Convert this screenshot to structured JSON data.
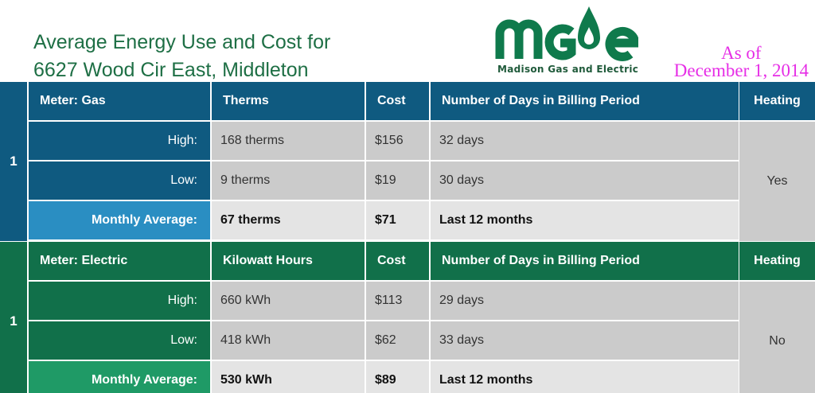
{
  "title": {
    "line1": "Average Energy Use and Cost for",
    "line2": "6627 Wood Cir East, Middleton"
  },
  "logo": {
    "wordmark": "MGE",
    "subtitle": "Madison Gas and Electric",
    "icon": "flame-drop-icon",
    "color": "#0f7a4c"
  },
  "as_of": {
    "line1": "As of",
    "line2": "December 1, 2014",
    "color": "#e62ee6"
  },
  "gas": {
    "number": "1",
    "header": {
      "meter": "Meter: Gas",
      "unit": "Therms",
      "cost": "Cost",
      "days": "Number of Days in Billing Period",
      "heating": "Heating"
    },
    "high": {
      "label": "High:",
      "usage": "168 therms",
      "cost": "$156",
      "days": "32 days"
    },
    "low": {
      "label": "Low:",
      "usage": "9 therms",
      "cost": "$19",
      "days": "30 days"
    },
    "average": {
      "label": "Monthly Average:",
      "usage": "67 therms",
      "cost": "$71",
      "days": "Last 12 months"
    },
    "heating": "Yes",
    "colors": {
      "primary": "#0f5a80",
      "accent": "#2a8ec2"
    }
  },
  "electric": {
    "number": "1",
    "header": {
      "meter": "Meter: Electric",
      "unit": "Kilowatt Hours",
      "cost": "Cost",
      "days": "Number of Days in Billing Period",
      "heating": "Heating"
    },
    "high": {
      "label": "High:",
      "usage": "660 kWh",
      "cost": "$113",
      "days": "29 days"
    },
    "low": {
      "label": "Low:",
      "usage": "418 kWh",
      "cost": "$62",
      "days": "33 days"
    },
    "average": {
      "label": "Monthly Average:",
      "usage": "530 kWh",
      "cost": "$89",
      "days": "Last 12 months"
    },
    "heating": "No",
    "colors": {
      "primary": "#11704a",
      "accent": "#1f9a66"
    }
  }
}
